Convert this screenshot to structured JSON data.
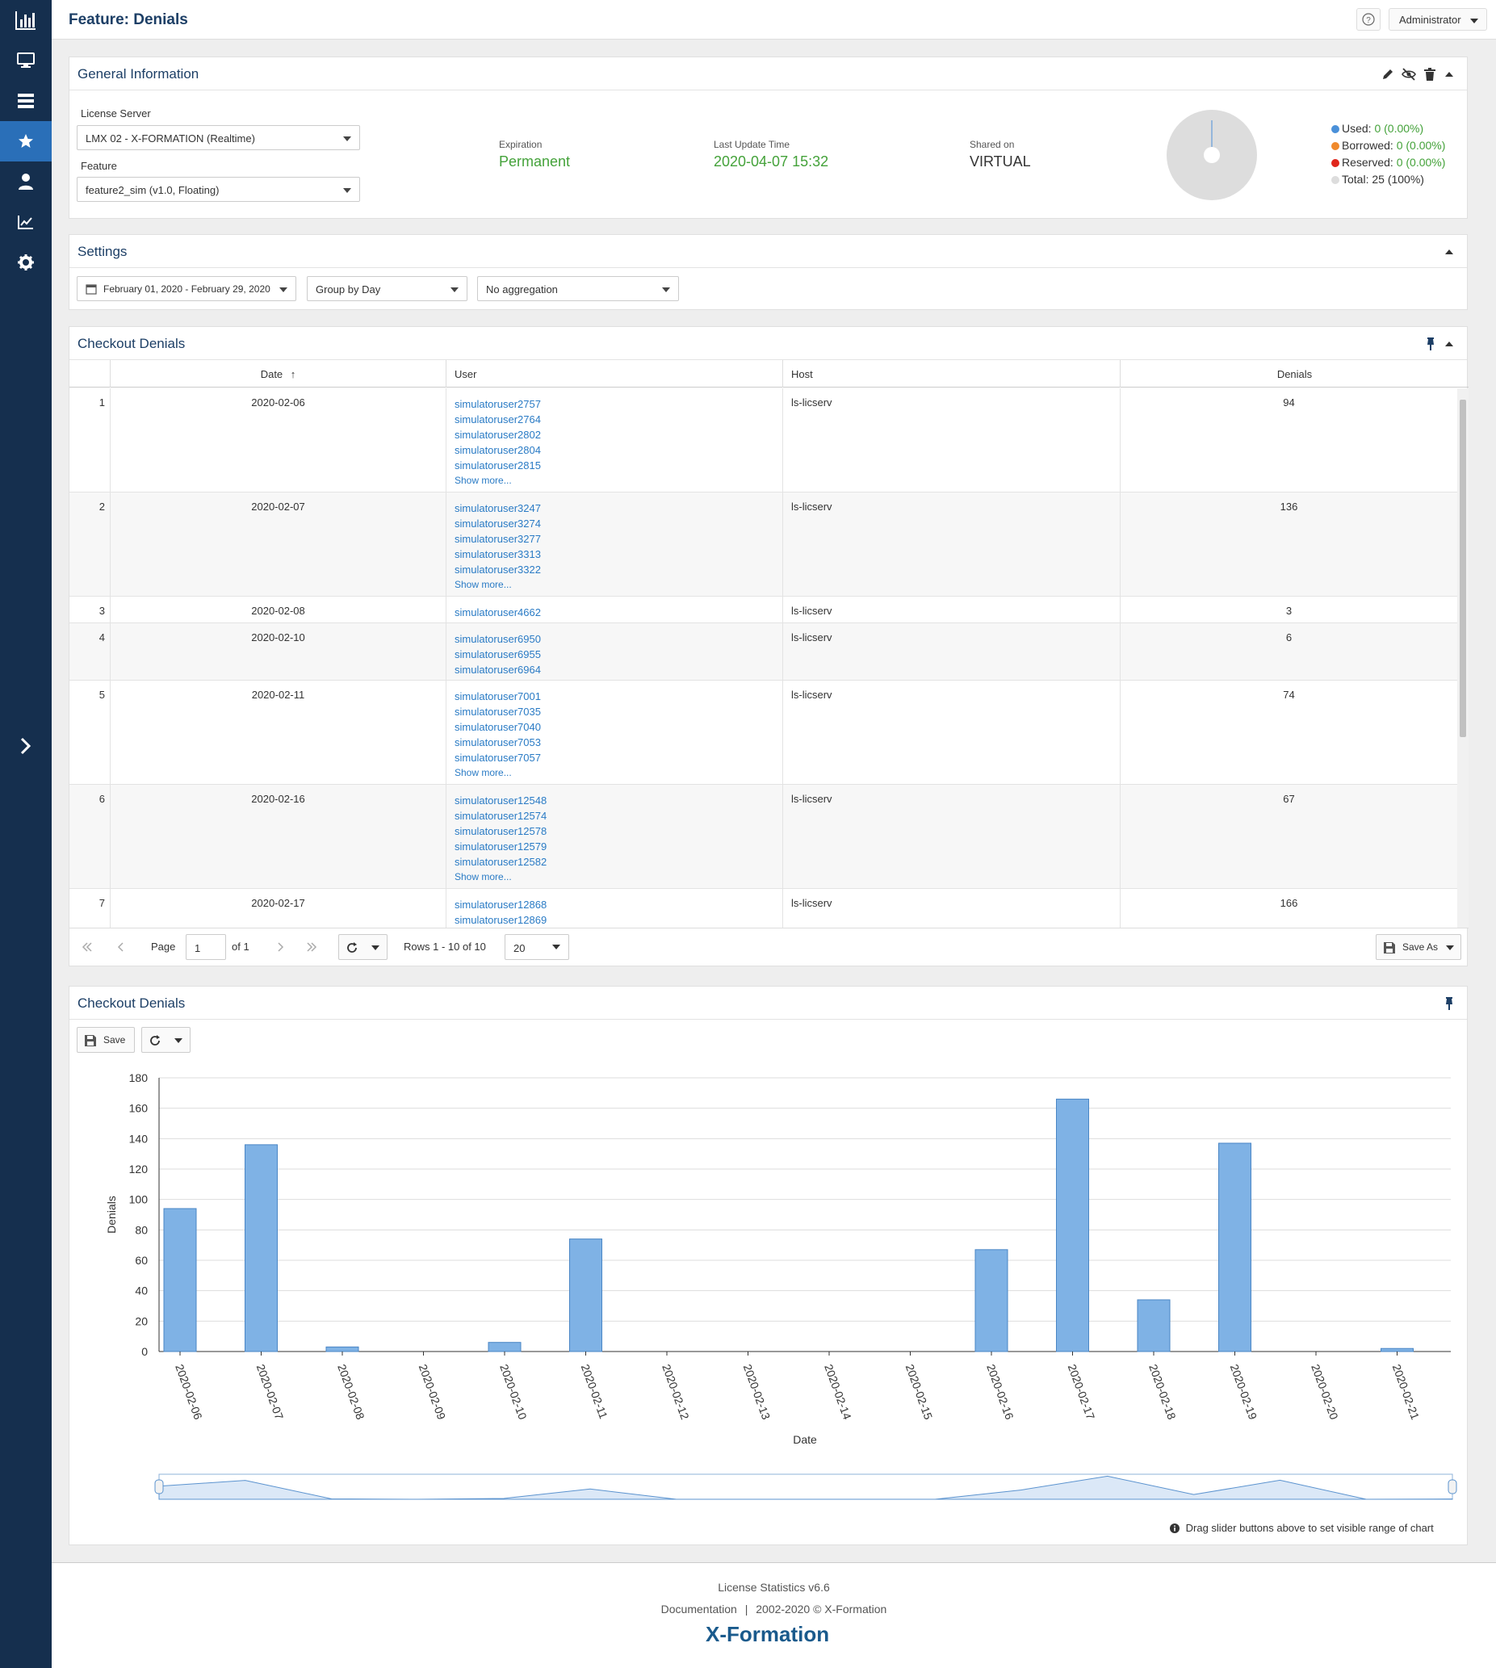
{
  "page": {
    "title": "Feature: Denials"
  },
  "header": {
    "user_menu": "Administrator"
  },
  "sidebar": {
    "items": [
      {
        "icon": "bar-chart-icon"
      },
      {
        "icon": "monitor-icon"
      },
      {
        "icon": "server-icon"
      },
      {
        "icon": "star-icon",
        "active": true
      },
      {
        "icon": "user-icon"
      },
      {
        "icon": "line-chart-icon"
      },
      {
        "icon": "gear-icon"
      },
      {
        "icon": "chevron-right-icon"
      }
    ]
  },
  "general": {
    "title": "General Information",
    "license_server_label": "License Server",
    "license_server_value": "LMX 02 - X-FORMATION (Realtime)",
    "feature_label": "Feature",
    "feature_value": "feature2_sim (v1.0, Floating)",
    "expiration_label": "Expiration",
    "expiration_value": "Permanent",
    "last_update_label": "Last Update Time",
    "last_update_value": "2020-04-07 15:32",
    "shared_label": "Shared on",
    "shared_value": "VIRTUAL",
    "legend": [
      {
        "label": "Used:",
        "value": "0 (0.00%)",
        "color": "#4a90d9"
      },
      {
        "label": "Borrowed:",
        "value": "0 (0.00%)",
        "color": "#f08a2c"
      },
      {
        "label": "Reserved:",
        "value": "0 (0.00%)",
        "color": "#e0261c"
      },
      {
        "label": "Total:",
        "value": "25 (100%)",
        "color": "#dddddd"
      }
    ]
  },
  "settings": {
    "title": "Settings",
    "date_range": "February 01, 2020 - February 29, 2020",
    "group_by": "Group by Day",
    "aggregation": "No aggregation"
  },
  "table_panel": {
    "title": "Checkout Denials",
    "columns": {
      "date": "Date",
      "sort_arrow": "↑",
      "user": "User",
      "host": "Host",
      "denials": "Denials"
    },
    "show_more": "Show more...",
    "rows": [
      {
        "num": "1",
        "date": "2020-02-06",
        "users": [
          "simulatoruser2757",
          "simulatoruser2764",
          "simulatoruser2802",
          "simulatoruser2804",
          "simulatoruser2815"
        ],
        "more": true,
        "host": "ls-licserv",
        "denials": "94"
      },
      {
        "num": "2",
        "date": "2020-02-07",
        "users": [
          "simulatoruser3247",
          "simulatoruser3274",
          "simulatoruser3277",
          "simulatoruser3313",
          "simulatoruser3322"
        ],
        "more": true,
        "host": "ls-licserv",
        "denials": "136"
      },
      {
        "num": "3",
        "date": "2020-02-08",
        "users": [
          "simulatoruser4662"
        ],
        "more": false,
        "host": "ls-licserv",
        "denials": "3"
      },
      {
        "num": "4",
        "date": "2020-02-10",
        "users": [
          "simulatoruser6950",
          "simulatoruser6955",
          "simulatoruser6964"
        ],
        "more": false,
        "host": "ls-licserv",
        "denials": "6"
      },
      {
        "num": "5",
        "date": "2020-02-11",
        "users": [
          "simulatoruser7001",
          "simulatoruser7035",
          "simulatoruser7040",
          "simulatoruser7053",
          "simulatoruser7057"
        ],
        "more": true,
        "host": "ls-licserv",
        "denials": "74"
      },
      {
        "num": "6",
        "date": "2020-02-16",
        "users": [
          "simulatoruser12548",
          "simulatoruser12574",
          "simulatoruser12578",
          "simulatoruser12579",
          "simulatoruser12582"
        ],
        "more": true,
        "host": "ls-licserv",
        "denials": "67"
      },
      {
        "num": "7",
        "date": "2020-02-17",
        "users": [
          "simulatoruser12868",
          "simulatoruser12869"
        ],
        "more": false,
        "host": "ls-licserv",
        "denials": "166"
      }
    ],
    "pager": {
      "page_label": "Page",
      "page_value": "1",
      "of_label": "of 1",
      "rows_label": "Rows 1 - 10 of 10",
      "page_size": "20",
      "save_as": "Save As"
    }
  },
  "chart_panel": {
    "title": "Checkout Denials",
    "save_label": "Save",
    "note": "Drag slider buttons above to set visible range of chart"
  },
  "chart_data": {
    "type": "bar",
    "xlabel": "Date",
    "ylabel": "Denials",
    "ylim": [
      0,
      180
    ],
    "yticks": [
      0,
      20,
      40,
      60,
      80,
      100,
      120,
      140,
      160,
      180
    ],
    "categories": [
      "2020-02-06",
      "2020-02-07",
      "2020-02-08",
      "2020-02-09",
      "2020-02-10",
      "2020-02-11",
      "2020-02-12",
      "2020-02-13",
      "2020-02-14",
      "2020-02-15",
      "2020-02-16",
      "2020-02-17",
      "2020-02-18",
      "2020-02-19",
      "2020-02-20",
      "2020-02-21"
    ],
    "values": [
      94,
      136,
      3,
      0,
      6,
      74,
      0,
      0,
      0,
      0,
      67,
      166,
      34,
      137,
      0,
      2
    ],
    "bar_color": "#7fb2e5",
    "grid": true
  },
  "footer": {
    "version": "License Statistics v6.6",
    "documentation": "Documentation",
    "copyright": "2002-2020 ©  X-Formation",
    "logo": "X-Formation"
  }
}
